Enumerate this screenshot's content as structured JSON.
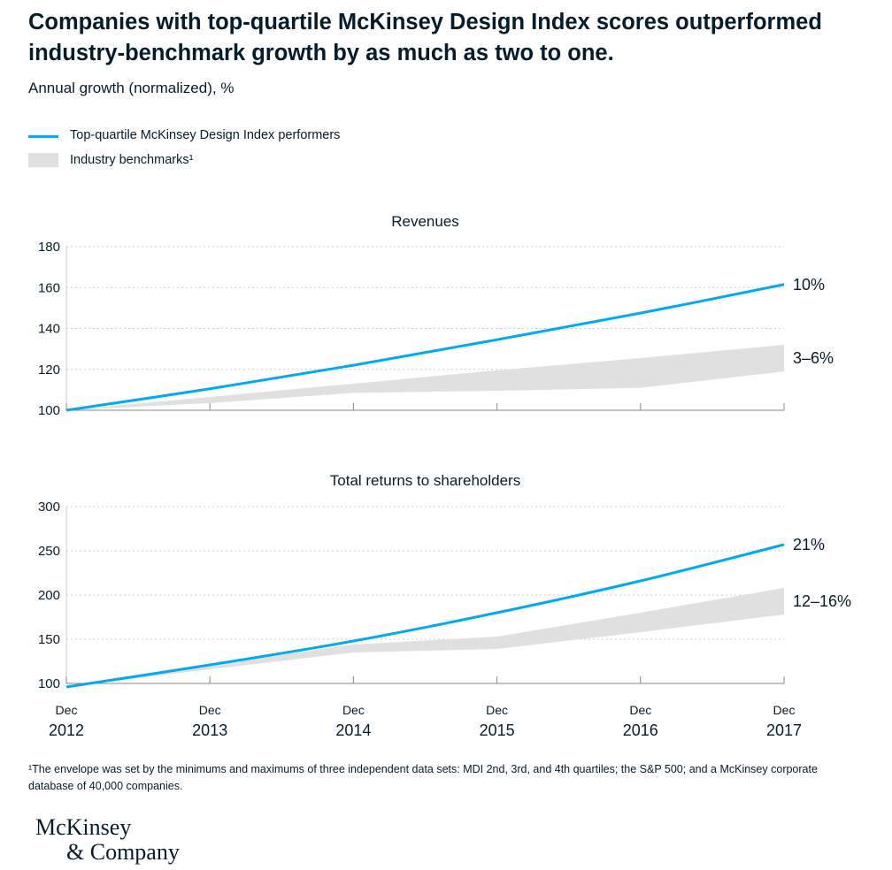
{
  "headline": "Companies with top-quartile McKinsey Design Index scores outperformed industry-benchmark growth by as much as two to one.",
  "subtitle": "Annual growth (normalized), %",
  "legend": {
    "line_label": "Top-quartile McKinsey Design Index performers",
    "band_label": "Industry benchmarks¹"
  },
  "colors": {
    "line": "#00a9f4",
    "band": "#e0e0e0",
    "text": "#051c2c",
    "grid": "#cccccc"
  },
  "x_axis": {
    "labels": [
      {
        "month": "Dec",
        "year": "2012"
      },
      {
        "month": "Dec",
        "year": "2013"
      },
      {
        "month": "Dec",
        "year": "2014"
      },
      {
        "month": "Dec",
        "year": "2015"
      },
      {
        "month": "Dec",
        "year": "2016"
      },
      {
        "month": "Dec",
        "year": "2017"
      }
    ]
  },
  "chart_data": [
    {
      "type": "area",
      "title": "Revenues",
      "categories": [
        "Dec 2012",
        "Dec 2013",
        "Dec 2014",
        "Dec 2015",
        "Dec 2016",
        "Dec 2017"
      ],
      "ylim": [
        100,
        180
      ],
      "yticks": [
        100,
        120,
        140,
        160,
        180
      ],
      "grid": true,
      "series": [
        {
          "name": "Top-quartile McKinsey Design Index performers",
          "kind": "line",
          "values": [
            100,
            110.5,
            122,
            134.5,
            147.5,
            161.5
          ],
          "end_label": "10%"
        },
        {
          "name": "Industry benchmarks¹",
          "kind": "band",
          "upper": [
            100,
            106.5,
            113,
            119.5,
            125.5,
            132
          ],
          "lower": [
            100,
            103.5,
            108.5,
            109.5,
            111,
            119
          ],
          "end_label": "3–6%"
        }
      ]
    },
    {
      "type": "area",
      "title": "Total returns to shareholders",
      "categories": [
        "Dec 2012",
        "Dec 2013",
        "Dec 2014",
        "Dec 2015",
        "Dec 2016",
        "Dec 2017"
      ],
      "ylim": [
        100,
        300
      ],
      "yticks": [
        100,
        150,
        200,
        250,
        300
      ],
      "grid": true,
      "series": [
        {
          "name": "Top-quartile McKinsey Design Index performers",
          "kind": "line",
          "values": [
            96,
            121,
            148,
            180,
            216,
            257
          ],
          "end_label": "21%"
        },
        {
          "name": "Industry benchmarks¹",
          "kind": "band",
          "upper": [
            96,
            121,
            144,
            153,
            180,
            208
          ],
          "lower": [
            96,
            116,
            135,
            139,
            158,
            178
          ],
          "end_label": "12–16%"
        }
      ]
    }
  ],
  "footnote": "¹The envelope was set by the minimums and maximums of three independent data sets: MDI 2nd, 3rd, and 4th quartiles; the S&P 500; and a McKinsey corporate database of 40,000 companies.",
  "logo": {
    "line1": "McKinsey",
    "line2": "& Company"
  }
}
